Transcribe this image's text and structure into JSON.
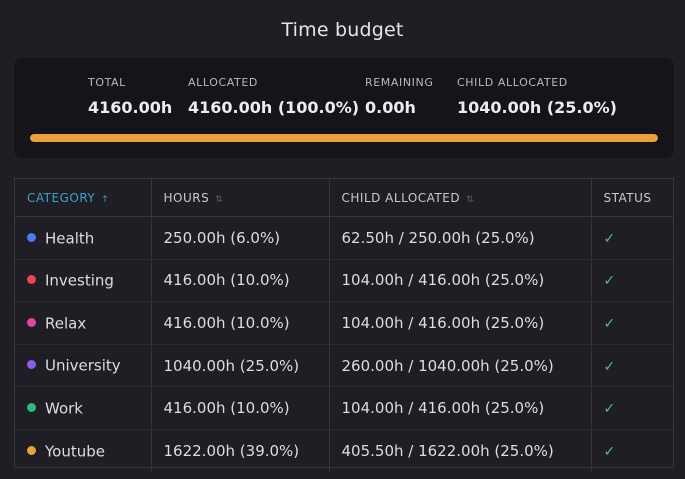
{
  "title": "Time budget",
  "summary": {
    "total_label": "TOTAL",
    "total_value": "4160.00h",
    "allocated_label": "ALLOCATED",
    "allocated_value": "4160.00h (100.0%)",
    "remaining_label": "REMAINING",
    "remaining_value": "0.00h",
    "child_label": "CHILD ALLOCATED",
    "child_value": "1040.00h (25.0%)",
    "progress_percent": 100,
    "progress_color": "#e8a13c"
  },
  "table": {
    "headers": {
      "category": "CATEGORY",
      "hours": "HOURS",
      "child_allocated": "CHILD ALLOCATED",
      "status": "STATUS"
    },
    "sort_icons": {
      "category": "↑",
      "hours": "⇅",
      "child_allocated": "⇅"
    },
    "rows": [
      {
        "name": "Health",
        "color": "#4a7cf0",
        "hours": "250.00h (6.0%)",
        "child": "62.50h / 250.00h (25.0%)",
        "status": "✓",
        "status_icon": "check-icon"
      },
      {
        "name": "Investing",
        "color": "#e8474f",
        "hours": "416.00h (10.0%)",
        "child": "104.00h / 416.00h (25.0%)",
        "status": "✓",
        "status_icon": "check-icon"
      },
      {
        "name": "Relax",
        "color": "#e0479a",
        "hours": "416.00h (10.0%)",
        "child": "104.00h / 416.00h (25.0%)",
        "status": "✓",
        "status_icon": "check-icon"
      },
      {
        "name": "University",
        "color": "#8a5cf0",
        "hours": "1040.00h (25.0%)",
        "child": "260.00h / 1040.00h (25.0%)",
        "status": "✓",
        "status_icon": "check-icon"
      },
      {
        "name": "Work",
        "color": "#2fb87a",
        "hours": "416.00h (10.0%)",
        "child": "104.00h / 416.00h (25.0%)",
        "status": "✓",
        "status_icon": "check-icon"
      },
      {
        "name": "Youtube",
        "color": "#e8a13c",
        "hours": "1622.00h (39.0%)",
        "child": "405.50h / 1622.00h (25.0%)",
        "status": "✓",
        "status_icon": "check-icon"
      }
    ]
  }
}
